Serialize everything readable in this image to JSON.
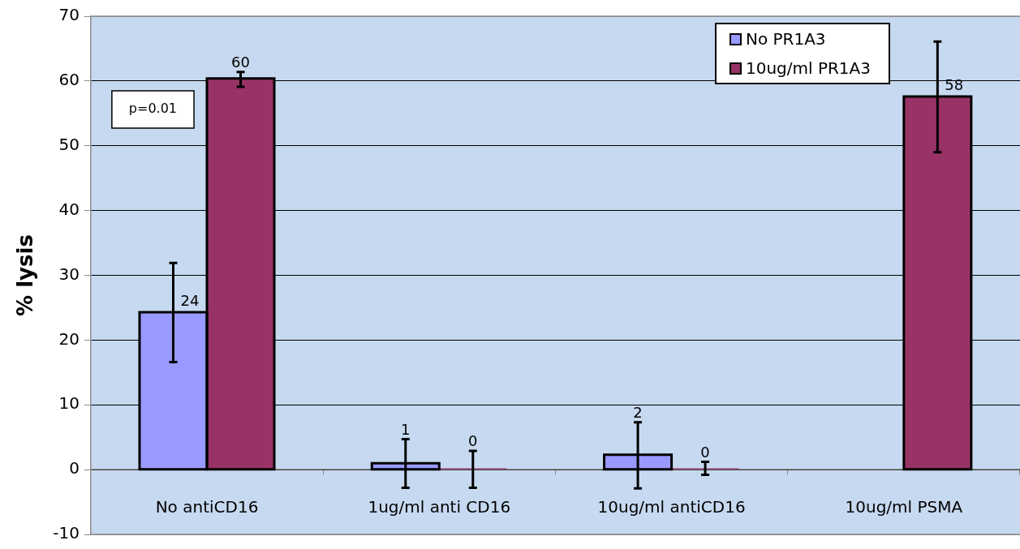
{
  "chart_data": {
    "type": "bar",
    "categories": [
      "No antiCD16",
      "1ug/ml anti CD16",
      "10ug/ml antiCD16",
      "10ug/ml PSMA"
    ],
    "series": [
      {
        "name": "No PR1A3",
        "color": "#9999ff",
        "values": [
          24.3,
          1.0,
          2.3,
          null
        ],
        "errors": [
          [
            16.6,
            31.9
          ],
          [
            -2.8,
            4.7
          ],
          [
            -2.9,
            7.3
          ],
          null
        ],
        "value_labels": [
          "24",
          "1",
          "2",
          null
        ]
      },
      {
        "name": "10ug/ml PR1A3",
        "color": "#993366",
        "values": [
          60.4,
          0.2,
          0.2,
          57.6
        ],
        "errors": [
          [
            59.1,
            61.4
          ],
          [
            -2.8,
            2.9
          ],
          [
            -0.8,
            1.2
          ],
          [
            49.0,
            66.1
          ]
        ],
        "value_labels": [
          "60",
          "0",
          "0",
          "58"
        ]
      }
    ],
    "ylabel": "% lysis",
    "ylim": [
      -10,
      70
    ],
    "yticks": [
      -10,
      0,
      10,
      20,
      30,
      40,
      50,
      60,
      70
    ],
    "grid": "y",
    "legend": "top right",
    "annotations": [
      "p=0.01"
    ]
  }
}
